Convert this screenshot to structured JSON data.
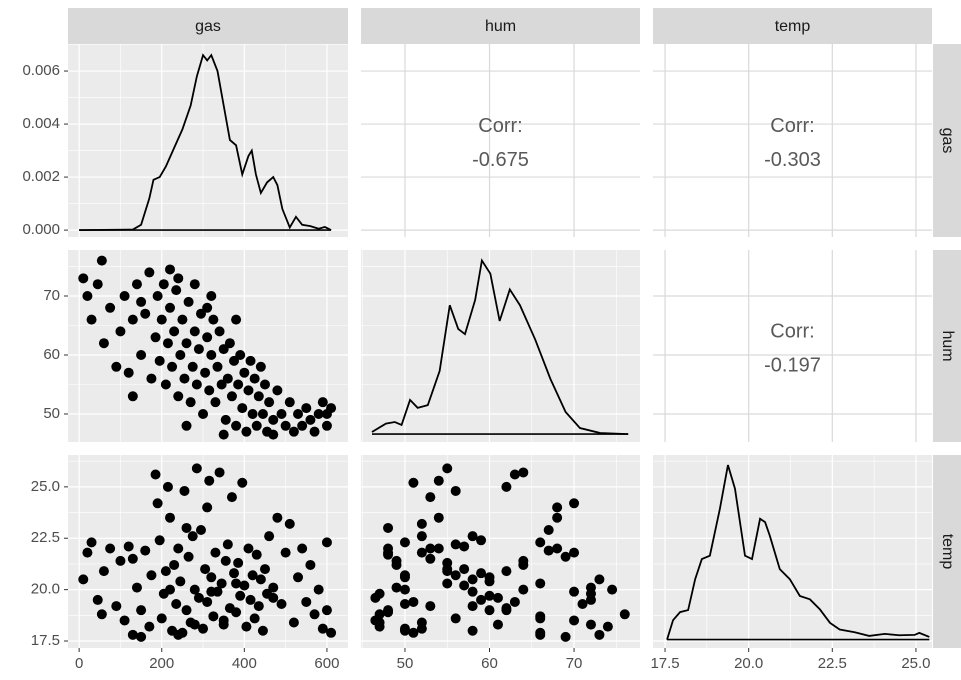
{
  "chart_data": {
    "type": "pairs",
    "columns": [
      {
        "name": "gas",
        "xlim": [
          -27,
          651
        ],
        "xticks": [
          0,
          200,
          400,
          600
        ]
      },
      {
        "name": "hum",
        "xlim": [
          44.8,
          77.8
        ],
        "xticks": [
          50,
          60,
          70
        ]
      },
      {
        "name": "temp",
        "xlim": [
          17.14,
          25.48
        ],
        "xticks": [
          17.5,
          {
            "value": 20,
            "label": "20.0"
          },
          22.5,
          {
            "value": 25,
            "label": "25.0"
          }
        ]
      }
    ],
    "rows": [
      {
        "name": "gas",
        "ylim": [
          -0.00026,
          0.00702
        ],
        "yticks": [
          {
            "value": 0,
            "label": "0.000"
          },
          {
            "value": 0.002,
            "label": "0.002"
          },
          {
            "value": 0.004,
            "label": "0.004"
          },
          {
            "value": 0.006,
            "label": "0.006"
          }
        ]
      },
      {
        "name": "hum",
        "ylim": [
          45.25,
          77.8
        ],
        "yticks": [
          50,
          60,
          70
        ]
      },
      {
        "name": "temp",
        "ylim": [
          17.16,
          26.55
        ],
        "yticks": [
          17.5,
          {
            "value": 20,
            "label": "20.0"
          },
          22.5,
          {
            "value": 25,
            "label": "25.0"
          }
        ]
      }
    ],
    "panels": [
      [
        {
          "type": "density",
          "x": [
            0,
            130,
            150,
            170,
            180,
            195,
            210,
            230,
            250,
            270,
            285,
            300,
            310,
            320,
            335,
            350,
            365,
            380,
            395,
            410,
            418,
            428,
            440,
            455,
            470,
            480,
            492,
            510,
            525,
            540,
            560,
            580,
            595,
            610
          ],
          "y": [
            0,
            2e-05,
            0.0002,
            0.0012,
            0.0019,
            0.002,
            0.0024,
            0.0031,
            0.0038,
            0.0047,
            0.0058,
            0.0066,
            0.0064,
            0.0066,
            0.006,
            0.0047,
            0.0034,
            0.0032,
            0.0021,
            0.0028,
            0.003,
            0.0021,
            0.0014,
            0.0018,
            0.002,
            0.0017,
            0.0008,
            0.0001,
            0.0005,
            0.0002,
            0.00015,
            5e-05,
            0.00012,
            0
          ]
        },
        {
          "type": "corr",
          "label": "Corr:",
          "value": -0.675
        },
        {
          "type": "corr",
          "label": "Corr:",
          "value": -0.303
        }
      ],
      [
        {
          "type": "scatter"
        },
        {
          "type": "density",
          "ylim": [
            -0.003,
            0.07
          ],
          "x": [
            46.1,
            47.75,
            48.8,
            49.6,
            50.6,
            51.5,
            52.7,
            54.1,
            55.3,
            56.3,
            57.1,
            58.3,
            59.1,
            60.1,
            61.2,
            62.4,
            63.6,
            65.4,
            67.2,
            69.0,
            70.7,
            73.1,
            76.4
          ],
          "y": [
            0.0008,
            0.004,
            0.0046,
            0.0035,
            0.013,
            0.01,
            0.011,
            0.024,
            0.049,
            0.04,
            0.038,
            0.051,
            0.066,
            0.061,
            0.043,
            0.055,
            0.049,
            0.036,
            0.021,
            0.0084,
            0.0023,
            0.0004,
            0
          ]
        },
        {
          "type": "corr",
          "label": "Corr:",
          "value": -0.197
        }
      ],
      [
        {
          "type": "scatter"
        },
        {
          "type": "scatter"
        },
        {
          "type": "density",
          "ylim": [
            -0.025,
            0.55
          ],
          "x": [
            17.56,
            17.74,
            17.95,
            18.19,
            18.4,
            18.6,
            18.84,
            19.14,
            19.38,
            19.59,
            19.89,
            20.1,
            20.34,
            20.49,
            20.63,
            20.93,
            21.23,
            21.53,
            21.83,
            22.13,
            22.43,
            22.72,
            23.17,
            23.6,
            24.07,
            24.5,
            24.96,
            25.1,
            25.4
          ],
          "y": [
            0,
            0.058,
            0.082,
            0.088,
            0.18,
            0.24,
            0.25,
            0.39,
            0.52,
            0.45,
            0.25,
            0.24,
            0.36,
            0.35,
            0.31,
            0.21,
            0.18,
            0.13,
            0.12,
            0.09,
            0.05,
            0.03,
            0.022,
            0.011,
            0.017,
            0.013,
            0.014,
            0.02,
            0.008
          ]
        }
      ]
    ],
    "observations": {
      "gas": [
        10,
        20,
        30,
        45,
        55,
        60,
        75,
        90,
        100,
        110,
        120,
        130,
        140,
        150,
        160,
        170,
        175,
        185,
        190,
        195,
        200,
        205,
        210,
        215,
        220,
        225,
        230,
        235,
        240,
        245,
        250,
        255,
        260,
        265,
        270,
        275,
        280,
        285,
        290,
        295,
        300,
        305,
        310,
        315,
        320,
        325,
        330,
        335,
        340,
        345,
        350,
        355,
        360,
        365,
        370,
        375,
        380,
        385,
        390,
        395,
        400,
        405,
        410,
        415,
        420,
        425,
        430,
        435,
        440,
        445,
        450,
        455,
        460,
        470,
        480,
        490,
        500,
        510,
        520,
        530,
        540,
        550,
        560,
        570,
        580,
        590,
        600,
        610,
        220,
        240,
        320,
        280,
        380,
        130,
        350,
        470,
        260,
        150,
        600,
        310
      ],
      "hum": [
        73,
        70,
        66,
        72,
        76,
        62,
        68,
        58,
        64,
        70,
        57,
        66,
        72,
        60,
        67,
        74,
        56,
        63,
        70,
        59,
        66,
        72,
        55,
        62,
        68,
        58,
        64,
        71,
        53,
        60,
        66,
        56,
        62,
        69,
        52,
        58,
        64,
        55,
        61,
        67,
        50,
        57,
        63,
        54,
        60,
        66,
        52,
        58,
        64,
        55,
        61,
        49,
        56,
        62,
        53,
        59,
        48,
        55,
        60,
        51,
        57,
        47,
        54,
        59,
        50,
        56,
        48,
        53,
        58,
        50,
        55,
        47,
        52,
        49,
        54,
        50,
        48,
        52,
        47,
        50,
        48,
        51,
        49,
        47,
        50,
        52,
        48,
        51,
        74.5,
        73,
        70,
        72,
        66,
        53,
        46.5,
        46.5,
        48,
        69,
        50,
        68
      ],
      "temp": [
        20.5,
        21.8,
        22.3,
        19.5,
        18.8,
        20.9,
        22.0,
        19.2,
        21.4,
        18.5,
        22.1,
        17.8,
        20.1,
        19.0,
        21.9,
        18.2,
        20.7,
        25.6,
        24.2,
        22.4,
        18.6,
        19.8,
        20.9,
        25.0,
        23.5,
        18.0,
        21.2,
        19.3,
        22.0,
        20.4,
        17.9,
        24.8,
        19.0,
        21.6,
        18.4,
        22.6,
        20.0,
        25.9,
        19.6,
        22.9,
        18.1,
        21.0,
        19.4,
        25.3,
        20.6,
        18.7,
        21.8,
        19.9,
        25.7,
        20.3,
        18.3,
        21.4,
        22.2,
        19.1,
        24.5,
        20.8,
        18.9,
        21.3,
        19.7,
        25.2,
        20.2,
        18.2,
        22.0,
        19.5,
        20.7,
        18.6,
        21.7,
        19.2,
        20.5,
        18.0,
        21.0,
        19.8,
        22.6,
        20.1,
        23.5,
        19.3,
        21.8,
        23.2,
        18.4,
        20.6,
        22.0,
        19.4,
        21.2,
        18.8,
        20.0,
        18.1,
        19.0,
        17.9,
        20.0,
        17.8,
        19.9,
        18.3,
        20.3,
        21.5,
        18.5,
        19.6,
        23.0,
        17.7,
        22.3,
        24.0
      ]
    }
  }
}
